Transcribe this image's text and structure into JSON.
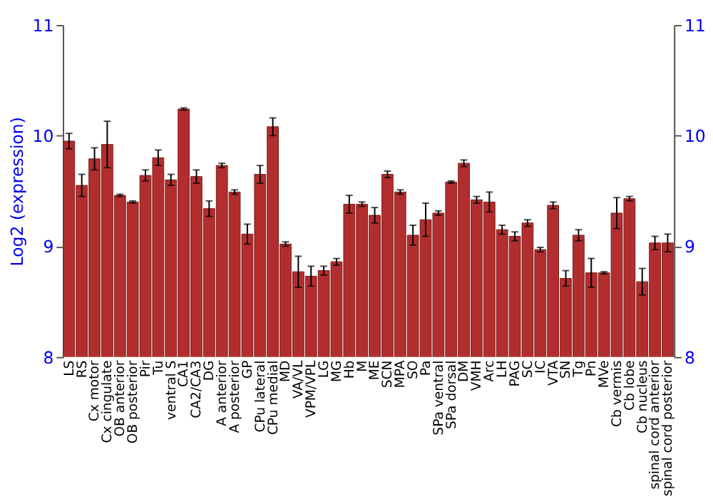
{
  "chart_data": {
    "type": "bar",
    "ylabel": "Log2 (expression)",
    "categories": [
      "LS",
      "RS",
      "Cx motor",
      "Cx cingulate",
      "OB anterior",
      "OB posterior",
      "Pir",
      "Tu",
      "ventral S",
      "CA1",
      "CA2/CA3",
      "DG",
      "A anterior",
      "A posterior",
      "GP",
      "CPu lateral",
      "CPu medial",
      "MD",
      "VA/VL",
      "VPM/VPL",
      "LG",
      "MG",
      "Hb",
      "M",
      "ME",
      "SCN",
      "MPA",
      "SO",
      "Pa",
      "SPa ventral",
      "SPa dorsal",
      "DM",
      "VMH",
      "Arc",
      "LH",
      "PAG",
      "SC",
      "IC",
      "VTA",
      "SN",
      "Tg",
      "Pn",
      "MVe",
      "Cb vermis",
      "Cb lobe",
      "Cb nucleus",
      "spinal cord anterior",
      "spinal cord posterior"
    ],
    "series": [
      {
        "color": "#b22e2e",
        "values": [
          9.95,
          9.55,
          9.79,
          9.92,
          9.46,
          9.4,
          9.64,
          9.8,
          9.6,
          10.24,
          9.63,
          9.34,
          9.73,
          9.49,
          9.11,
          9.65,
          10.08,
          9.02,
          8.77,
          8.73,
          8.78,
          8.86,
          9.38,
          9.38,
          9.28,
          9.65,
          9.49,
          9.1,
          9.24,
          9.3,
          9.58,
          9.75,
          9.42,
          9.4,
          9.15,
          9.09,
          9.21,
          8.97,
          9.37,
          8.71,
          9.1,
          8.76,
          8.76,
          9.3,
          9.43,
          8.68,
          9.03,
          9.03
        ],
        "errors": [
          0.07,
          0.1,
          0.1,
          0.21,
          0.01,
          0.01,
          0.05,
          0.07,
          0.05,
          0.01,
          0.06,
          0.07,
          0.02,
          0.02,
          0.09,
          0.08,
          0.08,
          0.02,
          0.14,
          0.09,
          0.04,
          0.03,
          0.08,
          0.02,
          0.07,
          0.03,
          0.02,
          0.09,
          0.15,
          0.02,
          0.01,
          0.03,
          0.03,
          0.09,
          0.04,
          0.04,
          0.03,
          0.02,
          0.03,
          0.07,
          0.05,
          0.13,
          0.01,
          0.14,
          0.02,
          0.12,
          0.06,
          0.08
        ]
      }
    ],
    "ylim": [
      8,
      11
    ],
    "yticks": [
      8,
      9,
      10,
      11
    ],
    "y2lim": [
      8,
      11
    ],
    "y2ticks": [
      8,
      9,
      10,
      11
    ],
    "grid": "y"
  }
}
